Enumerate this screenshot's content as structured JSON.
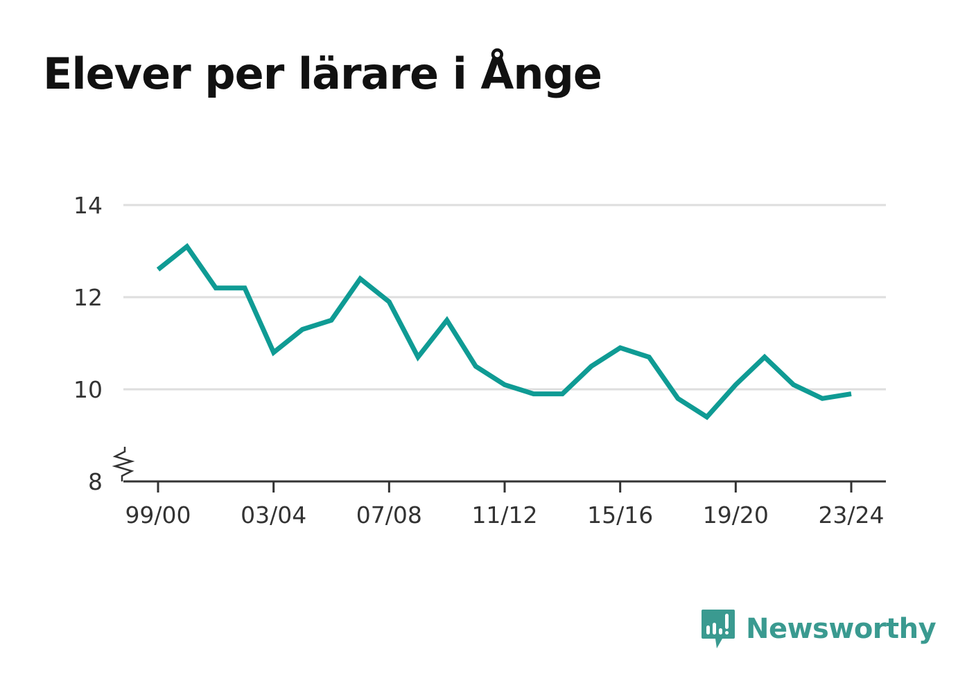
{
  "chart_data": {
    "type": "line",
    "title": "Elever per lärare i Ånge",
    "xlabel": "",
    "ylabel": "",
    "x": [
      "99/00",
      "00/01",
      "01/02",
      "02/03",
      "03/04",
      "04/05",
      "05/06",
      "06/07",
      "07/08",
      "08/09",
      "09/10",
      "10/11",
      "11/12",
      "12/13",
      "13/14",
      "14/15",
      "15/16",
      "16/17",
      "17/18",
      "18/19",
      "19/20",
      "20/21",
      "21/22",
      "22/23",
      "23/24"
    ],
    "xtick_labels": [
      "99/00",
      "03/04",
      "07/08",
      "11/12",
      "15/16",
      "19/20",
      "23/24"
    ],
    "yticks": [
      8,
      10,
      12,
      14
    ],
    "ylim": [
      8,
      14
    ],
    "y_axis_break": true,
    "grid": true,
    "series": [
      {
        "color": "#0f9b94",
        "values": [
          12.6,
          13.1,
          12.2,
          12.2,
          10.8,
          11.3,
          11.5,
          12.4,
          11.9,
          10.7,
          11.5,
          10.5,
          10.1,
          9.9,
          9.9,
          10.5,
          10.9,
          10.7,
          9.8,
          9.4,
          10.1,
          10.7,
          10.1,
          9.8,
          9.9
        ]
      }
    ]
  },
  "logo": {
    "text": "Newsworthy",
    "icon": "newsworthy-bar-chart-icon",
    "color": "#3a9a90"
  }
}
